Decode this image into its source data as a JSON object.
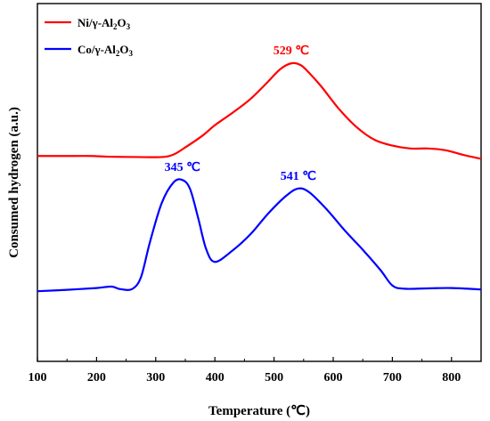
{
  "chart_data": {
    "type": "line",
    "xlabel": "Temperature (℃)",
    "ylabel": "Consumed hydrogen (a.u.)",
    "xlim": [
      100,
      850
    ],
    "ylim": [
      0,
      10
    ],
    "xticks": [
      "100",
      "200",
      "300",
      "400",
      "500",
      "600",
      "700",
      "800"
    ],
    "yticks_shown": false,
    "grid": false,
    "legend": {
      "placement": "top-left",
      "entries": [
        {
          "prefix": "Ni/γ-Al",
          "sub1": "2",
          "mid": "O",
          "sub2": "3",
          "color": "#ff0000"
        },
        {
          "prefix": "Co/γ-Al",
          "sub1": "2",
          "mid": "O",
          "sub2": "3",
          "color": "#0000ff"
        }
      ]
    },
    "series": [
      {
        "name": "Ni/γ-Al2O3",
        "color": "#ff0000",
        "x": [
          100,
          150,
          190,
          220,
          270,
          310,
          330,
          350,
          380,
          400,
          430,
          460,
          490,
          510,
          529,
          545,
          560,
          580,
          610,
          640,
          670,
          700,
          730,
          760,
          790,
          820,
          850
        ],
        "y": [
          5.74,
          5.74,
          5.74,
          5.72,
          5.71,
          5.71,
          5.78,
          5.98,
          6.32,
          6.6,
          6.95,
          7.33,
          7.82,
          8.16,
          8.33,
          8.28,
          8.05,
          7.68,
          7.05,
          6.54,
          6.19,
          6.03,
          5.95,
          5.95,
          5.9,
          5.77,
          5.66
        ]
      },
      {
        "name": "Co/γ-Al2O3",
        "color": "#0000ff",
        "x": [
          100,
          150,
          200,
          225,
          240,
          260,
          275,
          290,
          310,
          330,
          345,
          358,
          372,
          385,
          400,
          430,
          460,
          490,
          520,
          541,
          560,
          590,
          620,
          650,
          680,
          700,
          720,
          760,
          800,
          850
        ],
        "y": [
          1.96,
          2.0,
          2.05,
          2.09,
          2.02,
          2.02,
          2.35,
          3.32,
          4.42,
          5.0,
          5.07,
          4.82,
          3.99,
          3.15,
          2.78,
          3.1,
          3.55,
          4.13,
          4.62,
          4.83,
          4.72,
          4.23,
          3.65,
          3.12,
          2.55,
          2.12,
          2.03,
          2.04,
          2.05,
          2.01
        ]
      }
    ],
    "annotations": [
      {
        "text": "529 ℃",
        "x": 529,
        "y": 8.33,
        "color": "#ff0000"
      },
      {
        "text": "345 ℃",
        "x": 345,
        "y": 5.07,
        "color": "#0000ff"
      },
      {
        "text": "541 ℃",
        "x": 541,
        "y": 4.83,
        "color": "#0000ff"
      }
    ]
  }
}
